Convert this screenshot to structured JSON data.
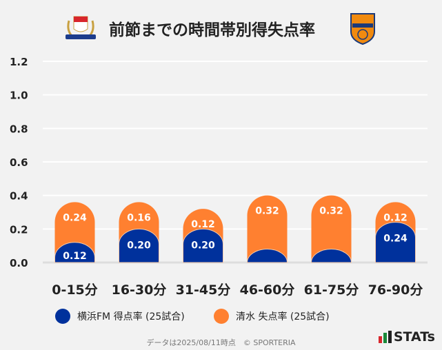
{
  "title": "前節までの時間帯別得失点率",
  "logos": {
    "left_text": "Yokohama F·Marinos",
    "right_text": "S-PULSE"
  },
  "chart_data": {
    "type": "bar",
    "stacked": true,
    "categories": [
      "0-15分",
      "16-30分",
      "31-45分",
      "46-60分",
      "61-75分",
      "76-90分"
    ],
    "series": [
      {
        "name": "横浜FM 得点率 (25試合)",
        "color": "#00319c",
        "values": [
          0.12,
          0.2,
          0.2,
          0.08,
          0.08,
          0.24
        ],
        "labels": [
          "0.12",
          "0.20",
          "0.20",
          "",
          "",
          "0.24"
        ]
      },
      {
        "name": "清水 失点率 (25試合)",
        "color": "#ff8030",
        "values": [
          0.24,
          0.16,
          0.12,
          0.32,
          0.32,
          0.12
        ],
        "labels": [
          "0.24",
          "0.16",
          "0.12",
          "0.32",
          "0.32",
          "0.12"
        ]
      }
    ],
    "ylim": [
      0,
      1.2
    ],
    "yticks": [
      "0.0",
      "0.2",
      "0.4",
      "0.6",
      "0.8",
      "1.0",
      "1.2"
    ],
    "grid": true,
    "legend_position": "bottom"
  },
  "footer": "データは2025/08/11時点　© SPORTERIA",
  "brand": "STATs"
}
